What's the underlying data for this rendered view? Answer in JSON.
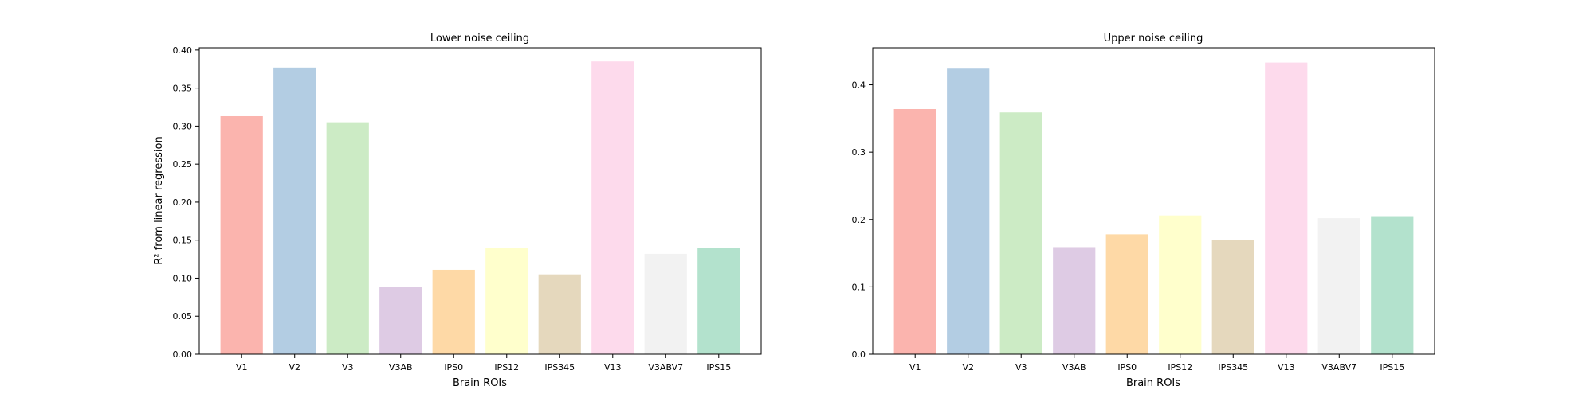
{
  "chart_data": [
    {
      "type": "bar",
      "title": "Lower noise ceiling",
      "xlabel": "Brain ROIs",
      "ylabel": "R² from linear regression",
      "categories": [
        "V1",
        "V2",
        "V3",
        "V3AB",
        "IPS0",
        "IPS12",
        "IPS345",
        "V13",
        "V3ABV7",
        "IPS15"
      ],
      "values": [
        0.313,
        0.377,
        0.305,
        0.088,
        0.111,
        0.14,
        0.105,
        0.385,
        0.132,
        0.14
      ],
      "ylim": [
        0,
        0.403
      ],
      "yticks": [
        "0.00",
        "0.05",
        "0.10",
        "0.15",
        "0.20",
        "0.25",
        "0.30",
        "0.35",
        "0.40"
      ],
      "grid": false,
      "legend": "none"
    },
    {
      "type": "bar",
      "title": "Upper noise ceiling",
      "xlabel": "Brain ROIs",
      "ylabel": "",
      "categories": [
        "V1",
        "V2",
        "V3",
        "V3AB",
        "IPS0",
        "IPS12",
        "IPS345",
        "V13",
        "V3ABV7",
        "IPS15"
      ],
      "values": [
        0.364,
        0.424,
        0.359,
        0.159,
        0.178,
        0.206,
        0.17,
        0.433,
        0.202,
        0.205
      ],
      "ylim": [
        0,
        0.455
      ],
      "yticks": [
        "0.0",
        "0.1",
        "0.2",
        "0.3",
        "0.4"
      ],
      "grid": false,
      "legend": "none"
    }
  ],
  "colors": [
    "#fbb4ae",
    "#b3cde3",
    "#ccebc5",
    "#decbe4",
    "#fed9a6",
    "#ffffcc",
    "#e5d8bd",
    "#fddaec",
    "#f2f2f2",
    "#b3e2cd"
  ]
}
